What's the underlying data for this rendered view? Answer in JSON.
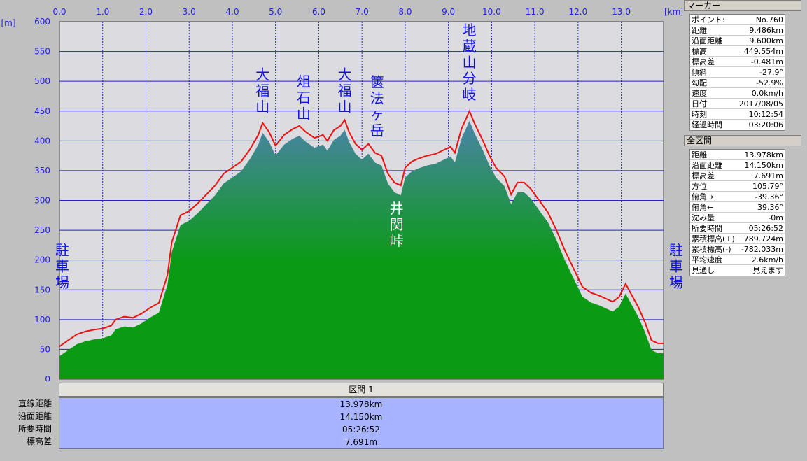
{
  "chart_data": {
    "type": "area",
    "title": "",
    "x_unit": "[km]",
    "y_unit": "[m]",
    "xlim": [
      0,
      13.978
    ],
    "ylim": [
      0,
      600
    ],
    "x_ticks": [
      "0.0",
      "1.0",
      "2.0",
      "3.0",
      "4.0",
      "5.0",
      "6.0",
      "7.0",
      "8.0",
      "9.0",
      "10.0",
      "11.0",
      "12.0",
      "13.0"
    ],
    "y_ticks": [
      "0",
      "50",
      "100",
      "150",
      "200",
      "250",
      "300",
      "350",
      "400",
      "450",
      "500",
      "550",
      "600"
    ],
    "grid": true,
    "series": [
      {
        "values_desc": "profile",
        "x": [
          0.0,
          0.2,
          0.4,
          0.6,
          0.8,
          1.0,
          1.2,
          1.3,
          1.5,
          1.7,
          1.9,
          2.1,
          2.3,
          2.5,
          2.6,
          2.8,
          3.0,
          3.2,
          3.4,
          3.6,
          3.8,
          4.0,
          4.2,
          4.4,
          4.6,
          4.7,
          4.85,
          5.0,
          5.2,
          5.4,
          5.55,
          5.7,
          5.9,
          6.1,
          6.2,
          6.35,
          6.5,
          6.6,
          6.7,
          6.85,
          7.0,
          7.15,
          7.3,
          7.45,
          7.6,
          7.75,
          7.9,
          8.0,
          8.15,
          8.3,
          8.5,
          8.7,
          8.9,
          9.05,
          9.15,
          9.3,
          9.486,
          9.6,
          9.8,
          9.95,
          10.1,
          10.3,
          10.45,
          10.6,
          10.75,
          10.9,
          11.1,
          11.3,
          11.5,
          11.7,
          11.9,
          12.1,
          12.3,
          12.5,
          12.65,
          12.8,
          12.95,
          13.1,
          13.25,
          13.4,
          13.55,
          13.7,
          13.85,
          13.978
        ],
        "y": [
          55,
          65,
          75,
          80,
          83,
          85,
          90,
          100,
          105,
          103,
          110,
          120,
          128,
          175,
          230,
          275,
          282,
          295,
          310,
          325,
          345,
          355,
          365,
          385,
          410,
          430,
          415,
          392,
          410,
          420,
          425,
          415,
          405,
          410,
          400,
          418,
          425,
          435,
          415,
          395,
          385,
          395,
          380,
          375,
          345,
          330,
          325,
          355,
          365,
          370,
          375,
          378,
          385,
          390,
          380,
          420,
          450,
          430,
          400,
          375,
          355,
          340,
          310,
          330,
          330,
          320,
          300,
          280,
          250,
          215,
          185,
          155,
          145,
          140,
          135,
          130,
          138,
          160,
          140,
          120,
          95,
          65,
          60,
          60
        ]
      }
    ],
    "annotations": [
      {
        "text": "駐車場",
        "at_km": 0.0,
        "elev": 145,
        "orientation": "vertical"
      },
      {
        "text": "大福山",
        "at_km": 4.7,
        "elev": 440,
        "orientation": "vertical"
      },
      {
        "text": "俎石山",
        "at_km": 5.65,
        "elev": 428,
        "orientation": "vertical"
      },
      {
        "text": "大福山",
        "at_km": 6.6,
        "elev": 440,
        "orientation": "vertical"
      },
      {
        "text": "篋法ヶ岳",
        "at_km": 7.35,
        "elev": 400,
        "orientation": "vertical"
      },
      {
        "text": "井関峠",
        "at_km": 7.8,
        "elev": 305,
        "orientation": "vertical-below"
      },
      {
        "text": "地蔵山分岐",
        "at_km": 9.486,
        "elev": 460,
        "orientation": "vertical"
      },
      {
        "text": "駐車場",
        "at_km": 13.978,
        "elev": 145,
        "orientation": "vertical"
      }
    ]
  },
  "segment": {
    "header": "区間 1",
    "rows": [
      {
        "label": "直線距離",
        "value": "13.978km"
      },
      {
        "label": "沿面距離",
        "value": "14.150km"
      },
      {
        "label": "所要時間",
        "value": "05:26:52"
      },
      {
        "label": "標高差",
        "value": "7.691m"
      }
    ]
  },
  "marker_panel": {
    "title": "マーカー",
    "rows": [
      {
        "label": "ポイント:",
        "value": "No.760"
      },
      {
        "label": "距離",
        "value": "9.486km"
      },
      {
        "label": "沿面距離",
        "value": "9.600km"
      },
      {
        "label": "標高",
        "value": "449.554m"
      },
      {
        "label": "標高差",
        "value": "-0.481m"
      },
      {
        "label": "傾斜",
        "value": "-27.9°"
      },
      {
        "label": "勾配",
        "value": "-52.9%"
      },
      {
        "label": "速度",
        "value": "0.0km/h"
      },
      {
        "label": "日付",
        "value": "2017/08/05"
      },
      {
        "label": "時刻",
        "value": "10:12:54"
      },
      {
        "label": "経過時間",
        "value": "03:20:06"
      }
    ]
  },
  "total_panel": {
    "title": "全区間",
    "rows": [
      {
        "label": "距離",
        "value": "13.978km"
      },
      {
        "label": "沿面距離",
        "value": "14.150km"
      },
      {
        "label": "標高差",
        "value": "7.691m"
      },
      {
        "label": "方位",
        "value": "105.79°"
      },
      {
        "label": "俯角→",
        "value": "-39.36°"
      },
      {
        "label": "俯角←",
        "value": "39.36°"
      },
      {
        "label": "沈み量",
        "value": "-0m"
      },
      {
        "label": "所要時間",
        "value": "05:26:52"
      },
      {
        "label": "累積標高(+)",
        "value": "789.724m"
      },
      {
        "label": "累積標高(-)",
        "value": "-782.033m"
      },
      {
        "label": "平均速度",
        "value": "2.6km/h"
      },
      {
        "label": "見通し",
        "value": "見えます"
      }
    ]
  },
  "colors": {
    "plot_bg": "#dcdce0",
    "grid": "#2424c8",
    "profile_line": "#ee1111",
    "fill_top": "#4a84a8",
    "fill_bottom": "#0a9a14"
  }
}
